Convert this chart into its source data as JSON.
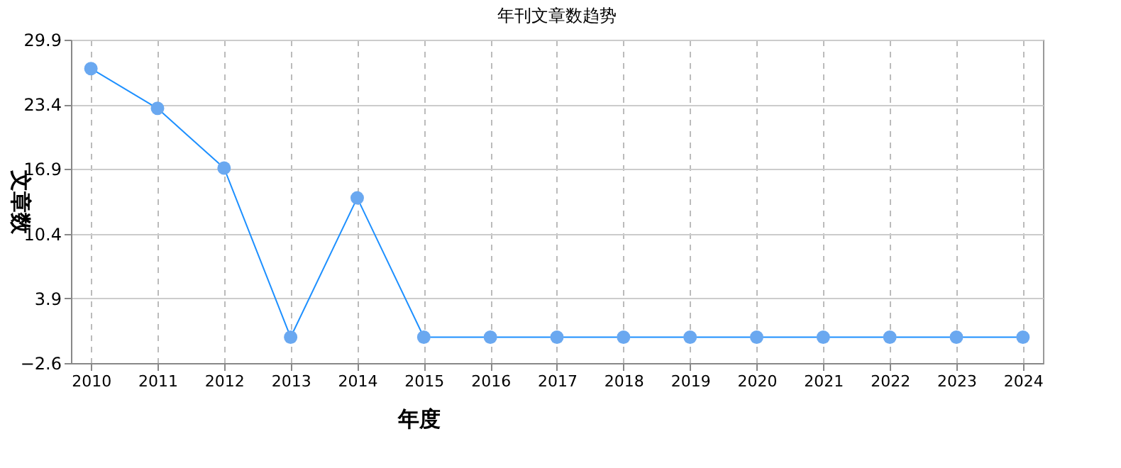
{
  "chart_data": {
    "type": "line",
    "title": "年刊文章数趋势",
    "xlabel": "年度",
    "ylabel": "文章数",
    "categories": [
      "2010",
      "2011",
      "2012",
      "2013",
      "2014",
      "2015",
      "2016",
      "2017",
      "2018",
      "2019",
      "2020",
      "2021",
      "2022",
      "2023",
      "2024"
    ],
    "series": [
      {
        "color": "#1e90ff",
        "values": [
          27,
          23,
          17,
          0,
          14,
          0,
          0,
          0,
          0,
          0,
          0,
          0,
          0,
          0,
          0
        ]
      }
    ],
    "ylim": [
      -2.6,
      29.9
    ],
    "yticks": [
      -2.6,
      3.9,
      10.4,
      16.9,
      23.4,
      29.9
    ],
    "grid": true,
    "marker": "circle",
    "line_style": "solid"
  }
}
